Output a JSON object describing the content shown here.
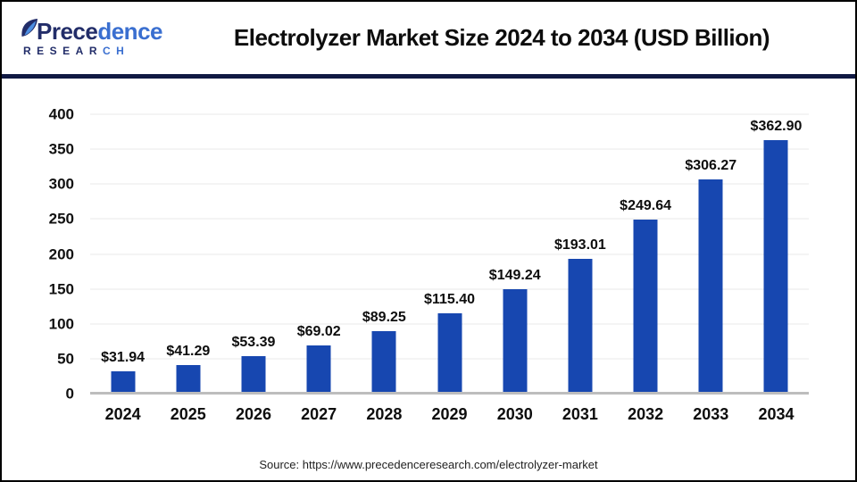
{
  "header": {
    "logo": {
      "brand_word_part1": "Prece",
      "brand_word_part2": "dence",
      "brand_sub_part1": "RESEAR",
      "brand_sub_part2": "CH",
      "navy": "#222d69",
      "blue": "#3a6fd0"
    },
    "title": "Electrolyzer Market Size 2024 to 2034 (USD Billion)"
  },
  "chart_data": {
    "type": "bar",
    "title": "Electrolyzer Market Size 2024 to 2034 (USD Billion)",
    "categories": [
      "2024",
      "2025",
      "2026",
      "2027",
      "2028",
      "2029",
      "2030",
      "2031",
      "2032",
      "2033",
      "2034"
    ],
    "values": [
      31.94,
      41.29,
      53.39,
      69.02,
      89.25,
      115.4,
      149.24,
      193.01,
      249.64,
      306.27,
      362.9
    ],
    "value_labels": [
      "$31.94",
      "$41.29",
      "$53.39",
      "$69.02",
      "$89.25",
      "$115.40",
      "$149.24",
      "$193.01",
      "$249.64",
      "$306.27",
      "$362.90"
    ],
    "xlabel": "",
    "ylabel": "",
    "ylim": [
      0,
      400
    ],
    "yticks": [
      0,
      50,
      100,
      150,
      200,
      250,
      300,
      350,
      400
    ],
    "grid": "horizontal",
    "legend_position": "none",
    "bar_color": "#1747b0",
    "gridline_color": "#e8e8e8",
    "axis_line_color": "#bdbdbd"
  },
  "footer": {
    "source": "Source: https://www.precedenceresearch.com/electrolyzer-market"
  }
}
